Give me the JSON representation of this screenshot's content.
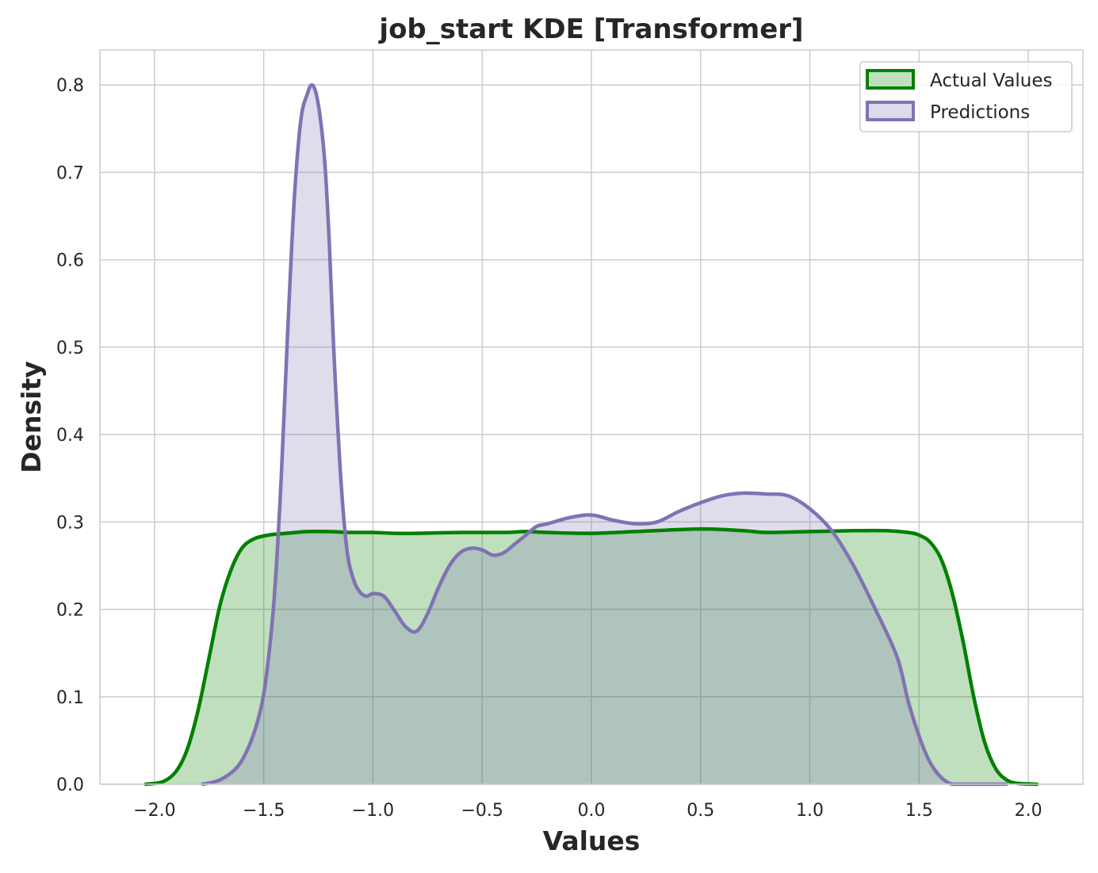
{
  "chart_data": {
    "type": "area",
    "title": "job_start KDE [Transformer]",
    "xlabel": "Values",
    "ylabel": "Density",
    "xlim": [
      -2.25,
      2.25
    ],
    "ylim": [
      0.0,
      0.84
    ],
    "x_ticks": [
      -2.0,
      -1.5,
      -1.0,
      -0.5,
      0.0,
      0.5,
      1.0,
      1.5,
      2.0
    ],
    "x_tick_labels": [
      "−2.0",
      "−1.5",
      "−1.0",
      "−0.5",
      "0.0",
      "0.5",
      "1.0",
      "1.5",
      "2.0"
    ],
    "y_ticks": [
      0.0,
      0.1,
      0.2,
      0.3,
      0.4,
      0.5,
      0.6,
      0.7,
      0.8
    ],
    "y_tick_labels": [
      "0.0",
      "0.1",
      "0.2",
      "0.3",
      "0.4",
      "0.5",
      "0.6",
      "0.7",
      "0.8"
    ],
    "grid": true,
    "legend_position": "top-right",
    "series": [
      {
        "name": "Actual Values",
        "color": "#008000",
        "fill": "#c0dfbf",
        "x": [
          -2.04,
          -1.96,
          -1.9,
          -1.85,
          -1.8,
          -1.75,
          -1.7,
          -1.65,
          -1.6,
          -1.55,
          -1.5,
          -1.45,
          -1.4,
          -1.3,
          -1.2,
          -1.1,
          -1.0,
          -0.9,
          -0.8,
          -0.6,
          -0.4,
          -0.3,
          -0.2,
          0.0,
          0.2,
          0.5,
          0.7,
          0.8,
          1.0,
          1.2,
          1.35,
          1.45,
          1.5,
          1.55,
          1.6,
          1.65,
          1.7,
          1.75,
          1.8,
          1.85,
          1.9,
          1.95,
          2.04
        ],
        "y": [
          0.0,
          0.003,
          0.015,
          0.04,
          0.085,
          0.145,
          0.205,
          0.245,
          0.27,
          0.28,
          0.284,
          0.286,
          0.287,
          0.289,
          0.289,
          0.288,
          0.288,
          0.287,
          0.287,
          0.288,
          0.288,
          0.289,
          0.288,
          0.287,
          0.289,
          0.292,
          0.29,
          0.288,
          0.289,
          0.29,
          0.29,
          0.288,
          0.285,
          0.277,
          0.258,
          0.22,
          0.165,
          0.1,
          0.048,
          0.018,
          0.005,
          0.001,
          0.0
        ]
      },
      {
        "name": "Predictions",
        "color": "#8172b3",
        "fill": "#dfdaeb",
        "x": [
          -1.78,
          -1.7,
          -1.62,
          -1.56,
          -1.51,
          -1.48,
          -1.45,
          -1.42,
          -1.39,
          -1.36,
          -1.33,
          -1.3,
          -1.28,
          -1.26,
          -1.24,
          -1.22,
          -1.2,
          -1.18,
          -1.15,
          -1.12,
          -1.09,
          -1.06,
          -1.03,
          -1.0,
          -0.95,
          -0.9,
          -0.85,
          -0.8,
          -0.75,
          -0.7,
          -0.65,
          -0.6,
          -0.55,
          -0.5,
          -0.45,
          -0.4,
          -0.35,
          -0.3,
          -0.25,
          -0.2,
          -0.1,
          0.0,
          0.1,
          0.2,
          0.3,
          0.4,
          0.5,
          0.6,
          0.7,
          0.8,
          0.9,
          1.0,
          1.1,
          1.2,
          1.3,
          1.4,
          1.45,
          1.5,
          1.55,
          1.6,
          1.65,
          1.7,
          1.75,
          1.8,
          1.85,
          1.9
        ],
        "y": [
          0.0,
          0.005,
          0.02,
          0.048,
          0.09,
          0.14,
          0.22,
          0.35,
          0.52,
          0.67,
          0.76,
          0.79,
          0.8,
          0.79,
          0.76,
          0.71,
          0.62,
          0.5,
          0.36,
          0.27,
          0.235,
          0.22,
          0.215,
          0.218,
          0.215,
          0.198,
          0.18,
          0.175,
          0.195,
          0.225,
          0.25,
          0.265,
          0.27,
          0.268,
          0.262,
          0.265,
          0.275,
          0.285,
          0.295,
          0.298,
          0.305,
          0.308,
          0.302,
          0.298,
          0.3,
          0.312,
          0.322,
          0.33,
          0.333,
          0.332,
          0.33,
          0.315,
          0.29,
          0.25,
          0.2,
          0.145,
          0.095,
          0.055,
          0.025,
          0.008,
          0.0,
          0.0,
          0.0,
          0.0,
          0.0,
          0.0
        ]
      }
    ]
  }
}
